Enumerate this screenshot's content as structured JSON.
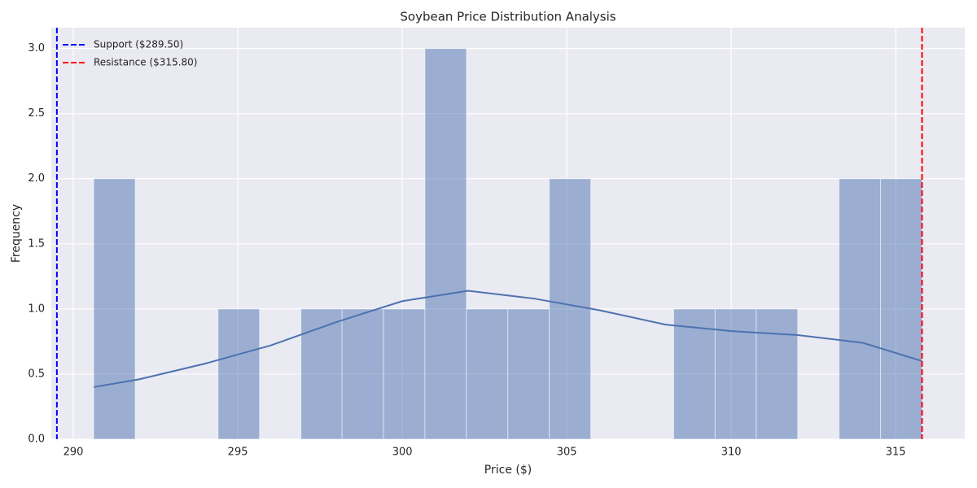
{
  "chart_data": {
    "type": "histogram",
    "title": "Soybean Price Distribution Analysis",
    "x_label": "Price ($)",
    "y_label": "Frequency",
    "bins": [
      290.62,
      291.88,
      293.14,
      294.4,
      295.66,
      296.92,
      298.17,
      299.43,
      300.69,
      301.95,
      303.21,
      304.47,
      305.73,
      306.99,
      308.25,
      309.51,
      310.76,
      312.02,
      313.28,
      314.54,
      315.8
    ],
    "counts": [
      2,
      0,
      0,
      1,
      0,
      1,
      1,
      1,
      3,
      1,
      1,
      2,
      0,
      0,
      1,
      1,
      1,
      0,
      2,
      2
    ],
    "color": "#4c72b0",
    "kde": {
      "x": [
        290.62,
        292,
        294,
        296,
        298,
        300,
        302,
        304,
        306,
        308,
        310,
        312,
        314,
        315.8
      ],
      "y": [
        0.4,
        0.46,
        0.58,
        0.72,
        0.9,
        1.06,
        1.14,
        1.08,
        0.99,
        0.88,
        0.83,
        0.8,
        0.74,
        0.6
      ],
      "color": "#4c72b0"
    },
    "lines": [
      {
        "name": "Support ($289.50)",
        "value": 289.5,
        "color": "#0000ff"
      },
      {
        "name": "Resistance ($315.80)",
        "value": 315.8,
        "color": "#ff0000"
      }
    ],
    "xlim": [
      289.33,
      317.1
    ],
    "ylim": [
      0,
      3.16
    ],
    "xticks": [
      290,
      295,
      300,
      305,
      310,
      315
    ],
    "yticks": [
      {
        "value": 0,
        "label": "0.0"
      },
      0.5,
      {
        "value": 1,
        "label": "1.0"
      },
      1.5,
      {
        "value": 2,
        "label": "2.0"
      },
      2.5,
      {
        "value": 3,
        "label": "3.0"
      }
    ],
    "grid": true,
    "legend": "upper left"
  }
}
